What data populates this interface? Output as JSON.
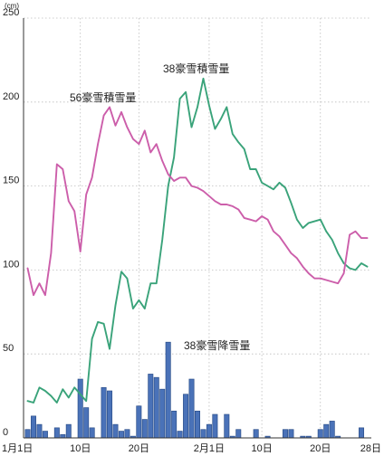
{
  "chart_data": {
    "type": "bar+line",
    "title": "",
    "ylabel": "(cm)",
    "ylim": [
      0,
      250
    ],
    "yticks": [
      0,
      50,
      100,
      150,
      200,
      250
    ],
    "xlim": [
      1,
      59
    ],
    "xticks": [
      {
        "x": 1,
        "label": "1月1日"
      },
      {
        "x": 10,
        "label": "10日"
      },
      {
        "x": 20,
        "label": "20日"
      },
      {
        "x": 32,
        "label": "2月1日"
      },
      {
        "x": 41,
        "label": "10日"
      },
      {
        "x": 51,
        "label": "20日"
      },
      {
        "x": 59,
        "label": "28日"
      }
    ],
    "grid": true,
    "colors": {
      "bars": "#4a72b8",
      "bar_edge": "#2c4f8a",
      "line38": "#3aa37a",
      "line56": "#cc5eaa"
    },
    "series": [
      {
        "name": "38豪雪降雪量",
        "type": "bar",
        "x": [
          1,
          2,
          3,
          4,
          6,
          7,
          8,
          10,
          11,
          12,
          14,
          15,
          16,
          17,
          18,
          19,
          20,
          21,
          22,
          23,
          24,
          25,
          26,
          27,
          28,
          29,
          30,
          31,
          32,
          33,
          35,
          36,
          37,
          40,
          42,
          45,
          46,
          48,
          49,
          51,
          52,
          53,
          54,
          58
        ],
        "values": [
          5,
          13,
          8,
          4,
          6,
          2,
          8,
          35,
          18,
          6,
          30,
          28,
          8,
          4,
          5,
          1,
          19,
          11,
          38,
          36,
          29,
          57,
          16,
          4,
          26,
          35,
          16,
          5,
          8,
          14,
          14,
          1,
          5,
          5,
          1,
          5,
          5,
          1,
          1,
          5,
          8,
          10,
          1,
          6
        ]
      },
      {
        "name": "38豪雪積雪量",
        "type": "line",
        "x": [
          1,
          2,
          3,
          4,
          5,
          6,
          7,
          8,
          9,
          10,
          11,
          12,
          13,
          14,
          15,
          16,
          17,
          18,
          19,
          20,
          21,
          22,
          23,
          24,
          25,
          26,
          27,
          28,
          29,
          30,
          31,
          32,
          33,
          34,
          35,
          36,
          37,
          38,
          39,
          40,
          41,
          42,
          43,
          44,
          45,
          46,
          47,
          48,
          49,
          50,
          51,
          52,
          53,
          54,
          55,
          56,
          57,
          58,
          59
        ],
        "values": [
          22,
          21,
          30,
          28,
          25,
          21,
          29,
          24,
          30,
          26,
          22,
          59,
          69,
          68,
          53,
          79,
          99,
          95,
          77,
          82,
          77,
          92,
          92,
          118,
          150,
          167,
          202,
          206,
          185,
          197,
          214,
          198,
          184,
          190,
          197,
          181,
          176,
          172,
          160,
          160,
          152,
          150,
          148,
          152,
          149,
          140,
          130,
          125,
          128,
          129,
          130,
          123,
          118,
          110,
          104,
          101,
          100,
          104,
          102
        ]
      },
      {
        "name": "56豪雪積雪量",
        "type": "line",
        "x": [
          1,
          2,
          3,
          4,
          5,
          6,
          7,
          8,
          9,
          10,
          11,
          12,
          13,
          14,
          15,
          16,
          17,
          18,
          19,
          20,
          21,
          22,
          23,
          24,
          25,
          26,
          27,
          28,
          29,
          30,
          31,
          32,
          33,
          34,
          35,
          36,
          37,
          38,
          39,
          40,
          41,
          42,
          43,
          44,
          45,
          46,
          47,
          48,
          49,
          50,
          51,
          52,
          53,
          54,
          55,
          56,
          57,
          58,
          59
        ],
        "values": [
          101,
          85,
          92,
          85,
          110,
          163,
          160,
          141,
          135,
          111,
          145,
          155,
          175,
          192,
          197,
          186,
          194,
          185,
          178,
          175,
          183,
          170,
          175,
          165,
          157,
          153,
          155,
          155,
          150,
          149,
          147,
          144,
          141,
          139,
          139,
          138,
          136,
          131,
          130,
          129,
          132,
          130,
          123,
          120,
          115,
          110,
          107,
          102,
          98,
          95,
          95,
          94,
          93,
          92,
          98,
          121,
          123,
          119,
          119
        ]
      }
    ],
    "annotations": [
      {
        "text": "38豪雪積雪量",
        "series": "38豪雪積雪量"
      },
      {
        "text": "56豪雪積雪量",
        "series": "56豪雪積雪量"
      },
      {
        "text": "38豪雪降雪量",
        "series": "38豪雪降雪量"
      }
    ]
  }
}
